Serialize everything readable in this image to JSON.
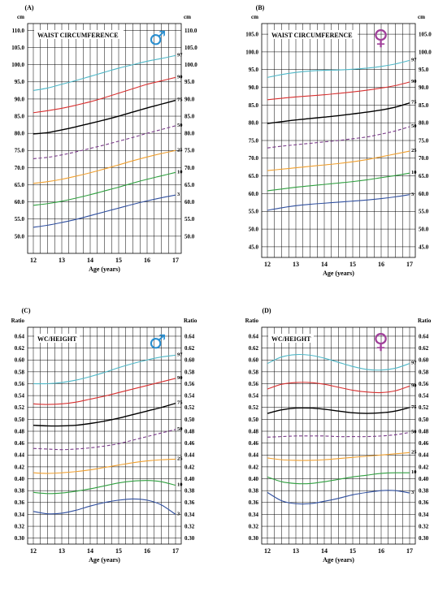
{
  "colors": {
    "p97": "#4fb8c8",
    "p90": "#d83030",
    "p75": "#000000",
    "p50": "#7a3a8a",
    "p25": "#f0a030",
    "p10": "#30a040",
    "p3": "#3050a0",
    "male_symbol": "#2a8fd0",
    "female_symbol": "#a0409a"
  },
  "chart_data": [
    {
      "type": "line",
      "panel": "(A)",
      "title": "WAIST CIRCUMFERENCE",
      "symbol": "♂",
      "symbol_color": "male_symbol",
      "unit": "cm",
      "xlabel": "Age (years)",
      "x_ticks": [
        12,
        13,
        14,
        15,
        16,
        17
      ],
      "xlim": [
        11.8,
        17.2
      ],
      "ylim": [
        45,
        112
      ],
      "y_ticks": [
        50,
        55,
        60,
        65,
        70,
        75,
        80,
        85,
        90,
        95,
        100,
        105,
        110
      ],
      "y_tick_labels": [
        "50.0",
        "55.0",
        "60.0",
        "65.0",
        "70.0",
        "75.0",
        "80.0",
        "85.0",
        "90.0",
        "95.0",
        "100.0",
        "105.0",
        "110.0"
      ],
      "grid": true,
      "x": [
        12,
        12.5,
        13,
        13.5,
        14,
        14.5,
        15,
        15.5,
        16,
        16.5,
        17
      ],
      "series": [
        {
          "name": "97",
          "color": "p97",
          "dashed": false,
          "values": [
            92.5,
            93.2,
            94.3,
            95.4,
            96.6,
            97.8,
            99.0,
            100.0,
            101.0,
            101.8,
            102.7
          ]
        },
        {
          "name": "90",
          "color": "p90",
          "dashed": false,
          "values": [
            86.0,
            86.6,
            87.3,
            88.2,
            89.2,
            90.4,
            91.7,
            93.0,
            94.3,
            95.3,
            96.3
          ]
        },
        {
          "name": "75",
          "color": "p75",
          "dashed": false,
          "values": [
            79.8,
            80.2,
            81.0,
            81.9,
            82.9,
            83.9,
            85.0,
            86.2,
            87.4,
            88.5,
            89.6
          ]
        },
        {
          "name": "50",
          "color": "p50",
          "dashed": true,
          "values": [
            72.6,
            73.0,
            73.7,
            74.6,
            75.6,
            76.6,
            77.7,
            78.8,
            80.0,
            81.1,
            82.2
          ]
        },
        {
          "name": "25",
          "color": "p25",
          "dashed": false,
          "values": [
            65.4,
            65.9,
            66.6,
            67.5,
            68.5,
            69.6,
            70.8,
            72.0,
            73.1,
            74.1,
            75.0
          ]
        },
        {
          "name": "10",
          "color": "p10",
          "dashed": false,
          "values": [
            59.0,
            59.5,
            60.2,
            61.1,
            62.1,
            63.2,
            64.3,
            65.5,
            66.6,
            67.6,
            68.6
          ]
        },
        {
          "name": "3",
          "color": "p3",
          "dashed": false,
          "values": [
            52.6,
            53.2,
            54.0,
            54.9,
            56.0,
            57.1,
            58.2,
            59.3,
            60.3,
            61.2,
            62.0
          ]
        }
      ]
    },
    {
      "type": "line",
      "panel": "(B)",
      "title": "WAIST CIRCUMFERENCE",
      "symbol": "♀",
      "symbol_color": "female_symbol",
      "unit": "cm",
      "xlabel": "Age (years)",
      "x_ticks": [
        12,
        13,
        14,
        15,
        16,
        17
      ],
      "xlim": [
        11.8,
        17.2
      ],
      "ylim": [
        42,
        108
      ],
      "y_ticks": [
        45,
        50,
        55,
        60,
        65,
        70,
        75,
        80,
        85,
        90,
        95,
        100,
        105
      ],
      "y_tick_labels": [
        "45.0",
        "50.0",
        "55.0",
        "60.0",
        "65.0",
        "70.0",
        "75.0",
        "80.0",
        "85.0",
        "90.0",
        "95.0",
        "100.0",
        "105.0"
      ],
      "grid": true,
      "x": [
        12,
        12.5,
        13,
        13.5,
        14,
        14.5,
        15,
        15.5,
        16,
        16.5,
        17
      ],
      "series": [
        {
          "name": "97",
          "color": "p97",
          "dashed": false,
          "values": [
            92.8,
            93.6,
            94.2,
            94.6,
            94.8,
            94.9,
            95.1,
            95.4,
            95.9,
            96.6,
            97.6
          ]
        },
        {
          "name": "90",
          "color": "p90",
          "dashed": false,
          "values": [
            86.5,
            86.9,
            87.3,
            87.6,
            87.9,
            88.3,
            88.7,
            89.2,
            89.8,
            90.5,
            91.5
          ]
        },
        {
          "name": "75",
          "color": "p75",
          "dashed": false,
          "values": [
            79.8,
            80.3,
            80.8,
            81.2,
            81.6,
            82.0,
            82.5,
            83.0,
            83.6,
            84.4,
            85.6
          ]
        },
        {
          "name": "50",
          "color": "p50",
          "dashed": true,
          "values": [
            72.9,
            73.4,
            73.8,
            74.2,
            74.6,
            75.0,
            75.5,
            76.0,
            76.8,
            77.7,
            78.9
          ]
        },
        {
          "name": "25",
          "color": "p25",
          "dashed": false,
          "values": [
            66.5,
            66.9,
            67.3,
            67.7,
            68.1,
            68.5,
            69.0,
            69.6,
            70.4,
            71.2,
            72.0
          ]
        },
        {
          "name": "10",
          "color": "p10",
          "dashed": false,
          "values": [
            60.8,
            61.3,
            61.8,
            62.2,
            62.6,
            63.0,
            63.4,
            63.9,
            64.5,
            65.1,
            65.8
          ]
        },
        {
          "name": "3",
          "color": "p3",
          "dashed": false,
          "values": [
            55.3,
            56.0,
            56.6,
            57.0,
            57.3,
            57.6,
            57.9,
            58.2,
            58.6,
            59.1,
            59.7
          ]
        }
      ]
    },
    {
      "type": "line",
      "panel": "(C)",
      "title": "WC/HEIGHT",
      "symbol": "♂",
      "symbol_color": "male_symbol",
      "unit": "Ratio",
      "xlabel": "Age (years)",
      "x_ticks": [
        12,
        13,
        14,
        15,
        16,
        17
      ],
      "xlim": [
        11.8,
        17.2
      ],
      "ylim": [
        0.29,
        0.655
      ],
      "y_ticks": [
        0.3,
        0.32,
        0.34,
        0.36,
        0.38,
        0.4,
        0.42,
        0.44,
        0.46,
        0.48,
        0.5,
        0.52,
        0.54,
        0.56,
        0.58,
        0.6,
        0.62,
        0.64
      ],
      "y_tick_labels": [
        "0.30",
        "0.32",
        "0.34",
        "0.36",
        "0.38",
        "0.40",
        "0.42",
        "0.44",
        "0.46",
        "0.48",
        "0.50",
        "0.52",
        "0.54",
        "0.56",
        "0.58",
        "0.60",
        "0.62",
        "0.64"
      ],
      "grid": true,
      "x": [
        12,
        12.5,
        13,
        13.5,
        14,
        14.5,
        15,
        15.5,
        16,
        16.5,
        17
      ],
      "series": [
        {
          "name": "97",
          "color": "p97",
          "dashed": false,
          "values": [
            0.56,
            0.56,
            0.562,
            0.566,
            0.572,
            0.579,
            0.587,
            0.594,
            0.6,
            0.605,
            0.608
          ]
        },
        {
          "name": "90",
          "color": "p90",
          "dashed": false,
          "values": [
            0.526,
            0.525,
            0.526,
            0.529,
            0.534,
            0.539,
            0.545,
            0.551,
            0.557,
            0.563,
            0.569
          ]
        },
        {
          "name": "75",
          "color": "p75",
          "dashed": false,
          "values": [
            0.49,
            0.489,
            0.489,
            0.49,
            0.493,
            0.497,
            0.502,
            0.508,
            0.514,
            0.52,
            0.527
          ]
        },
        {
          "name": "50",
          "color": "p50",
          "dashed": true,
          "values": [
            0.451,
            0.45,
            0.449,
            0.45,
            0.452,
            0.455,
            0.459,
            0.465,
            0.471,
            0.477,
            0.483
          ]
        },
        {
          "name": "25",
          "color": "p25",
          "dashed": false,
          "values": [
            0.41,
            0.409,
            0.41,
            0.412,
            0.415,
            0.419,
            0.423,
            0.427,
            0.43,
            0.432,
            0.433
          ]
        },
        {
          "name": "10",
          "color": "p10",
          "dashed": false,
          "values": [
            0.377,
            0.375,
            0.376,
            0.379,
            0.383,
            0.388,
            0.393,
            0.396,
            0.397,
            0.395,
            0.389
          ]
        },
        {
          "name": "3",
          "color": "p3",
          "dashed": false,
          "values": [
            0.345,
            0.341,
            0.342,
            0.347,
            0.354,
            0.36,
            0.364,
            0.366,
            0.364,
            0.356,
            0.34
          ]
        }
      ]
    },
    {
      "type": "line",
      "panel": "(D)",
      "title": "WC/HEIGHT",
      "symbol": "♀",
      "symbol_color": "female_symbol",
      "unit": "Ratio",
      "xlabel": "Age (years)",
      "x_ticks": [
        12,
        13,
        14,
        15,
        16,
        17
      ],
      "xlim": [
        11.8,
        17.2
      ],
      "ylim": [
        0.29,
        0.655
      ],
      "y_ticks": [
        0.3,
        0.32,
        0.34,
        0.36,
        0.38,
        0.4,
        0.42,
        0.44,
        0.46,
        0.48,
        0.5,
        0.52,
        0.54,
        0.56,
        0.58,
        0.6,
        0.62,
        0.64
      ],
      "y_tick_labels": [
        "0.30",
        "0.32",
        "0.34",
        "0.36",
        "0.38",
        "0.40",
        "0.42",
        "0.44",
        "0.46",
        "0.48",
        "0.50",
        "0.52",
        "0.54",
        "0.56",
        "0.58",
        "0.60",
        "0.62",
        "0.64"
      ],
      "grid": true,
      "x": [
        12,
        12.5,
        13,
        13.5,
        14,
        14.5,
        15,
        15.5,
        16,
        16.5,
        17
      ],
      "series": [
        {
          "name": "97",
          "color": "p97",
          "dashed": false,
          "values": [
            0.594,
            0.605,
            0.609,
            0.608,
            0.603,
            0.596,
            0.589,
            0.584,
            0.583,
            0.586,
            0.594
          ]
        },
        {
          "name": "90",
          "color": "p90",
          "dashed": false,
          "values": [
            0.551,
            0.559,
            0.562,
            0.562,
            0.559,
            0.554,
            0.549,
            0.546,
            0.545,
            0.548,
            0.556
          ]
        },
        {
          "name": "75",
          "color": "p75",
          "dashed": false,
          "values": [
            0.51,
            0.516,
            0.519,
            0.519,
            0.517,
            0.514,
            0.511,
            0.51,
            0.511,
            0.514,
            0.52
          ]
        },
        {
          "name": "50",
          "color": "p50",
          "dashed": true,
          "values": [
            0.47,
            0.471,
            0.472,
            0.472,
            0.472,
            0.471,
            0.471,
            0.471,
            0.472,
            0.474,
            0.478
          ]
        },
        {
          "name": "25",
          "color": "p25",
          "dashed": false,
          "values": [
            0.435,
            0.432,
            0.431,
            0.431,
            0.432,
            0.434,
            0.436,
            0.438,
            0.44,
            0.442,
            0.444
          ]
        },
        {
          "name": "10",
          "color": "p10",
          "dashed": false,
          "values": [
            0.403,
            0.395,
            0.392,
            0.392,
            0.395,
            0.399,
            0.403,
            0.406,
            0.409,
            0.41,
            0.41
          ]
        },
        {
          "name": "3",
          "color": "p3",
          "dashed": false,
          "values": [
            0.377,
            0.363,
            0.358,
            0.358,
            0.362,
            0.367,
            0.373,
            0.377,
            0.38,
            0.38,
            0.376
          ]
        }
      ]
    }
  ]
}
